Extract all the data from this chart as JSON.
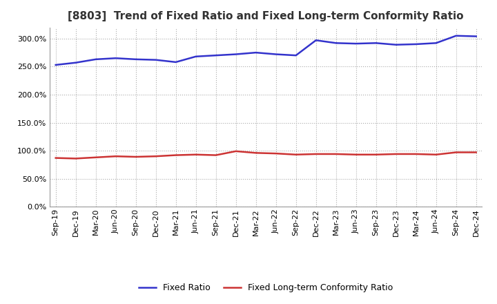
{
  "title": "[8803]  Trend of Fixed Ratio and Fixed Long-term Conformity Ratio",
  "x_labels": [
    "Sep-19",
    "Dec-19",
    "Mar-20",
    "Jun-20",
    "Sep-20",
    "Dec-20",
    "Mar-21",
    "Jun-21",
    "Sep-21",
    "Dec-21",
    "Mar-22",
    "Jun-22",
    "Sep-22",
    "Dec-22",
    "Mar-23",
    "Jun-23",
    "Sep-23",
    "Dec-23",
    "Mar-24",
    "Jun-24",
    "Sep-24",
    "Dec-24"
  ],
  "fixed_ratio": [
    253.0,
    257.0,
    263.0,
    265.0,
    263.0,
    262.0,
    258.0,
    268.0,
    270.0,
    272.0,
    275.0,
    272.0,
    270.0,
    297.0,
    292.0,
    291.0,
    292.0,
    289.0,
    290.0,
    292.0,
    305.0,
    304.0
  ],
  "fixed_lterm": [
    87.0,
    86.0,
    88.0,
    90.0,
    89.0,
    90.0,
    92.0,
    93.0,
    92.0,
    99.0,
    96.0,
    95.0,
    93.0,
    94.0,
    94.0,
    93.0,
    93.0,
    94.0,
    94.0,
    93.0,
    97.0,
    97.0
  ],
  "fixed_ratio_color": "#3333cc",
  "fixed_lterm_color": "#cc3333",
  "ylim": [
    0,
    320
  ],
  "yticks": [
    0,
    50,
    100,
    150,
    200,
    250,
    300
  ],
  "grid_color": "#aaaaaa",
  "background_color": "#ffffff",
  "title_fontsize": 11,
  "legend_fontsize": 9,
  "axis_fontsize": 8
}
